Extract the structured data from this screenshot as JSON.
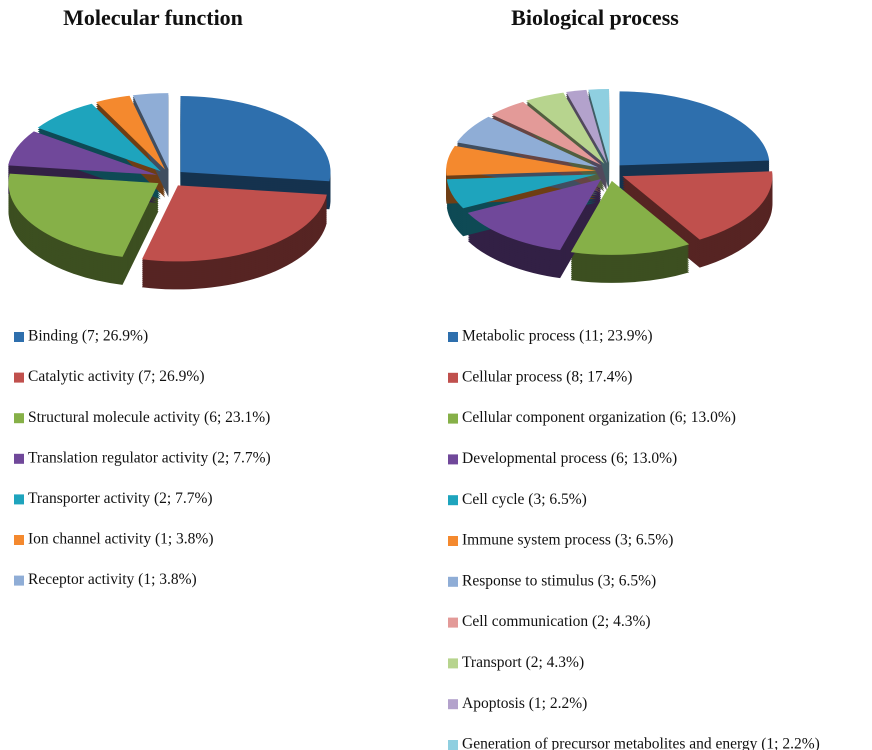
{
  "chart_data": [
    {
      "type": "pie",
      "title": "Molecular function",
      "categories": [
        "Binding (7; 26.9%)",
        "Catalytic activity (7; 26.9%)",
        "Structural molecule activity (6; 23.1%)",
        "Translation regulator activity (2; 7.7%)",
        "Transporter activity (2; 7.7%)",
        "Ion channel activity (1; 3.8%)",
        "Receptor activity (1; 3.8%)"
      ],
      "values": [
        26.9,
        26.9,
        23.1,
        7.7,
        7.7,
        3.8,
        3.8
      ],
      "colors": [
        "#2e6fad",
        "#c0504d",
        "#86b048",
        "#70489a",
        "#1ea4bd",
        "#f4892e",
        "#8fadd6"
      ]
    },
    {
      "type": "pie",
      "title": "Biological process",
      "categories": [
        "Metabolic process (11; 23.9%)",
        "Cellular process (8; 17.4%)",
        "Cellular component organization (6; 13.0%)",
        "Developmental process (6; 13.0%)",
        "Cell cycle (3; 6.5%)",
        "Immune system process (3; 6.5%)",
        "Response to stimulus (3; 6.5%)",
        "Cell communication (2; 4.3%)",
        "Transport (2; 4.3%)",
        "Apoptosis (1; 2.2%)",
        "Generation of precursor metabolites and energy (1; 2.2%)"
      ],
      "values": [
        23.9,
        17.4,
        13.0,
        13.0,
        6.5,
        6.5,
        6.5,
        4.3,
        4.3,
        2.2,
        2.2
      ],
      "colors": [
        "#2e6fad",
        "#c0504d",
        "#86b048",
        "#70489a",
        "#1ea4bd",
        "#f4892e",
        "#8fadd6",
        "#e39a98",
        "#b7d48e",
        "#b3a2cc",
        "#8fcfe0"
      ]
    }
  ]
}
